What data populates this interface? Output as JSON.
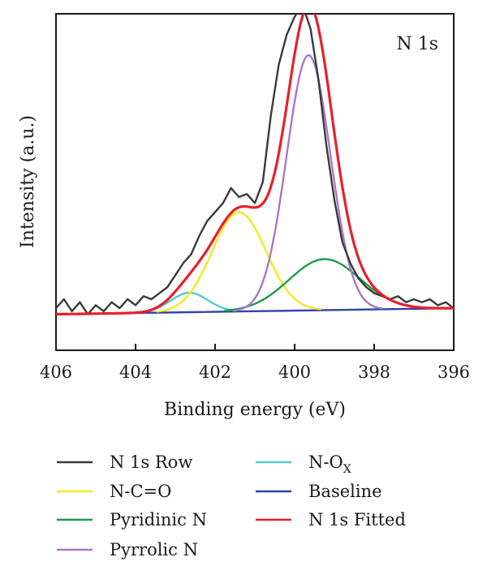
{
  "chart_data": {
    "type": "line",
    "title": "",
    "panel_label": "N 1s",
    "xlabel": "Binding energy (eV)",
    "ylabel": "Intensity (a.u.)",
    "xlim": [
      406,
      396
    ],
    "x_reversed": true,
    "ylim": [
      -0.12,
      1.0
    ],
    "y_ticks_shown": false,
    "xticks": [
      406,
      404,
      402,
      400,
      398,
      396
    ],
    "xtick_labels": [
      "406",
      "404",
      "402",
      "400",
      "398",
      "396"
    ],
    "grid": false,
    "legend_position": "below plot, two columns",
    "series": [
      {
        "name": "N 1s Row",
        "key": "raw",
        "color": "#3a3a3a",
        "x": [
          406.0,
          405.8,
          405.6,
          405.4,
          405.2,
          405.0,
          404.8,
          404.6,
          404.4,
          404.2,
          404.0,
          403.8,
          403.6,
          403.4,
          403.2,
          403.0,
          402.8,
          402.6,
          402.4,
          402.2,
          402.0,
          401.8,
          401.6,
          401.4,
          401.2,
          401.0,
          400.8,
          400.6,
          400.4,
          400.2,
          400.0,
          399.8,
          399.6,
          399.4,
          399.2,
          399.0,
          398.8,
          398.6,
          398.4,
          398.2,
          398.0,
          397.8,
          397.6,
          397.4,
          397.2,
          397.0,
          396.8,
          396.6,
          396.4,
          396.2,
          396.0
        ],
        "y": [
          0.02,
          0.05,
          0.01,
          0.04,
          0.0,
          0.03,
          0.01,
          0.04,
          0.02,
          0.05,
          0.03,
          0.06,
          0.05,
          0.07,
          0.09,
          0.13,
          0.17,
          0.2,
          0.26,
          0.31,
          0.34,
          0.37,
          0.42,
          0.39,
          0.4,
          0.37,
          0.44,
          0.66,
          0.83,
          0.93,
          0.99,
          1.03,
          0.95,
          0.78,
          0.56,
          0.38,
          0.24,
          0.17,
          0.12,
          0.09,
          0.07,
          0.06,
          0.05,
          0.06,
          0.04,
          0.05,
          0.04,
          0.05,
          0.03,
          0.04,
          0.02
        ]
      },
      {
        "name": "N-C=O",
        "key": "nco",
        "color": "#f2ea1f",
        "center": 401.4,
        "height": 0.33,
        "fwhm": 1.6
      },
      {
        "name": "Pyridinic N",
        "key": "pyridinic",
        "color": "#1f9a4a",
        "center": 399.25,
        "height": 0.17,
        "fwhm": 2.1
      },
      {
        "name": "Pyrrolic N",
        "key": "pyrrolic",
        "color": "#a779c6",
        "center": 399.65,
        "height": 0.85,
        "fwhm": 1.3
      },
      {
        "name": "N-O",
        "name_subscript": "X",
        "key": "nox",
        "color": "#58c6d6",
        "center": 402.65,
        "height": 0.065,
        "fwhm": 1.1
      },
      {
        "name": "Baseline",
        "key": "baseline",
        "color": "#2d43a8",
        "x": [
          406,
          396
        ],
        "y": [
          0.0,
          0.02
        ]
      },
      {
        "name": "N 1s Fitted",
        "key": "fitted",
        "color": "#e8202a",
        "components": [
          "nco",
          "pyridinic",
          "pyrrolic",
          "nox",
          "baseline"
        ]
      }
    ],
    "legend": [
      {
        "key": "raw",
        "label": "N 1s Row",
        "col": 0,
        "row": 0
      },
      {
        "key": "nco",
        "label": "N-C=O",
        "col": 0,
        "row": 1
      },
      {
        "key": "pyridinic",
        "label": "Pyridinic N",
        "col": 0,
        "row": 2
      },
      {
        "key": "pyrrolic",
        "label": "Pyrrolic N",
        "col": 0,
        "row": 3
      },
      {
        "key": "nox",
        "label": "N-O",
        "sub": "X",
        "col": 1,
        "row": 0
      },
      {
        "key": "baseline",
        "label": "Baseline",
        "col": 1,
        "row": 1
      },
      {
        "key": "fitted",
        "label": "N 1s Fitted",
        "col": 1,
        "row": 2
      }
    ]
  }
}
